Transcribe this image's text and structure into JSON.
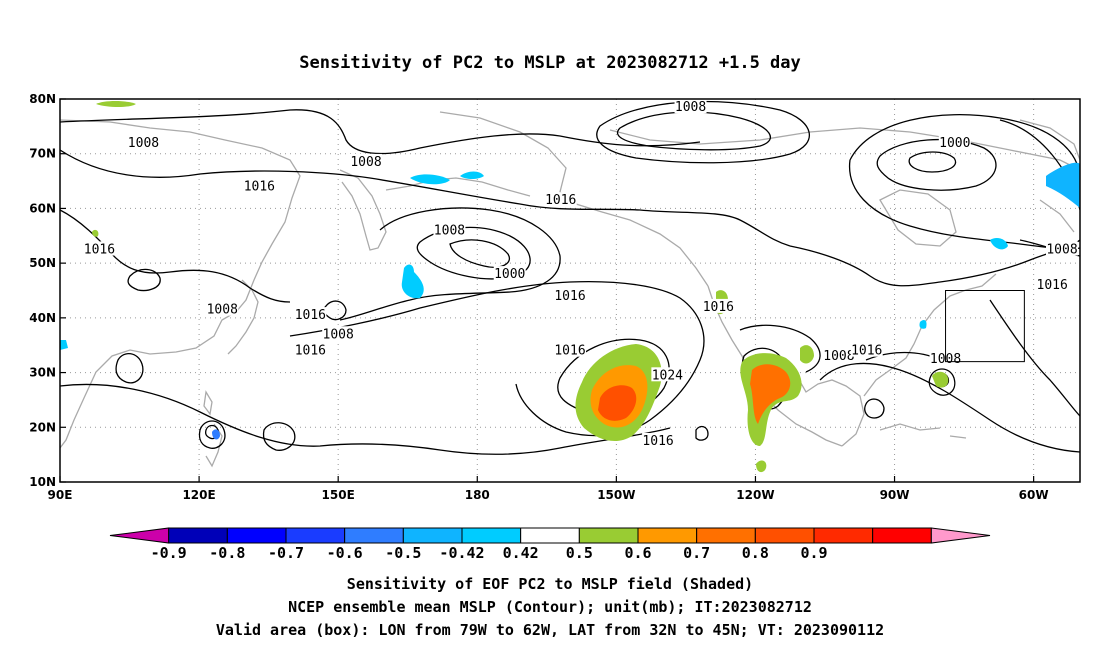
{
  "title": "Sensitivity of PC2 to MSLP at 2023082712 +1.5 day",
  "map": {
    "lon_range": [
      90,
      310
    ],
    "lat_range": [
      10,
      80
    ],
    "x_ticks": [
      {
        "lon": 90,
        "label": "90E"
      },
      {
        "lon": 120,
        "label": "120E"
      },
      {
        "lon": 150,
        "label": "150E"
      },
      {
        "lon": 180,
        "label": "180"
      },
      {
        "lon": 210,
        "label": "150W"
      },
      {
        "lon": 240,
        "label": "120W"
      },
      {
        "lon": 270,
        "label": "90W"
      },
      {
        "lon": 300,
        "label": "60W"
      }
    ],
    "y_ticks": [
      {
        "lat": 10,
        "label": "10N"
      },
      {
        "lat": 20,
        "label": "20N"
      },
      {
        "lat": 30,
        "label": "30N"
      },
      {
        "lat": 40,
        "label": "40N"
      },
      {
        "lat": 50,
        "label": "50N"
      },
      {
        "lat": 60,
        "label": "60N"
      },
      {
        "lat": 70,
        "label": "70N"
      },
      {
        "lat": 80,
        "label": "80N"
      }
    ],
    "gridlines": "dotted",
    "valid_box": {
      "lon_min": 281,
      "lon_max": 298,
      "lat_min": 32,
      "lat_max": 45
    },
    "contour_labels": [
      {
        "text": "1008",
        "lon": 108,
        "lat": 72
      },
      {
        "text": "1008",
        "lon": 156,
        "lat": 68.5
      },
      {
        "text": "1008",
        "lon": 226,
        "lat": 78.5
      },
      {
        "text": "1000",
        "lon": 283,
        "lat": 72
      },
      {
        "text": "1016",
        "lon": 133,
        "lat": 64
      },
      {
        "text": "1016",
        "lon": 198,
        "lat": 61.5
      },
      {
        "text": "1016",
        "lon": 98.5,
        "lat": 52.5
      },
      {
        "text": "1008",
        "lon": 174,
        "lat": 56
      },
      {
        "text": "1000",
        "lon": 187,
        "lat": 48
      },
      {
        "text": "1016",
        "lon": 200,
        "lat": 44
      },
      {
        "text": "1016",
        "lon": 232,
        "lat": 42
      },
      {
        "text": "1008",
        "lon": 125,
        "lat": 41.5
      },
      {
        "text": "1016",
        "lon": 144,
        "lat": 40.5
      },
      {
        "text": "1008",
        "lon": 150,
        "lat": 37
      },
      {
        "text": "1016",
        "lon": 144,
        "lat": 34
      },
      {
        "text": "1016",
        "lon": 200,
        "lat": 34
      },
      {
        "text": "1024",
        "lon": 221,
        "lat": 29.5
      },
      {
        "text": "1016",
        "lon": 219,
        "lat": 17.5
      },
      {
        "text": "1008",
        "lon": 258,
        "lat": 33
      },
      {
        "text": "1016",
        "lon": 264,
        "lat": 34
      },
      {
        "text": "1008",
        "lon": 281,
        "lat": 32.5
      },
      {
        "text": "1008",
        "lon": 310,
        "lat": 52.5
      },
      {
        "text": "1016",
        "lon": 304,
        "lat": 46
      }
    ]
  },
  "colorbar": {
    "colors": [
      "#cc00aa",
      "#0000b8",
      "#0000ff",
      "#1a3cff",
      "#2f7dff",
      "#0fb4ff",
      "#00ccff",
      "#ffffff",
      "#99cc33",
      "#ff9900",
      "#ff7000",
      "#ff5000",
      "#ff2a00",
      "#ff0000",
      "#ff99cc"
    ],
    "labels": [
      "-0.9",
      "-0.8",
      "-0.7",
      "-0.6",
      "-0.5",
      "-0.42",
      "0.42",
      "0.5",
      "0.6",
      "0.7",
      "0.8",
      "0.9"
    ]
  },
  "caption": {
    "line1": "Sensitivity of EOF PC2 to MSLP field (Shaded)",
    "line2": "NCEP ensemble mean MSLP (Contour); unit(mb); IT:2023082712",
    "line3": "Valid area (box): LON from 79W to 62W, LAT from 32N to 45N; VT: 2023090112"
  }
}
